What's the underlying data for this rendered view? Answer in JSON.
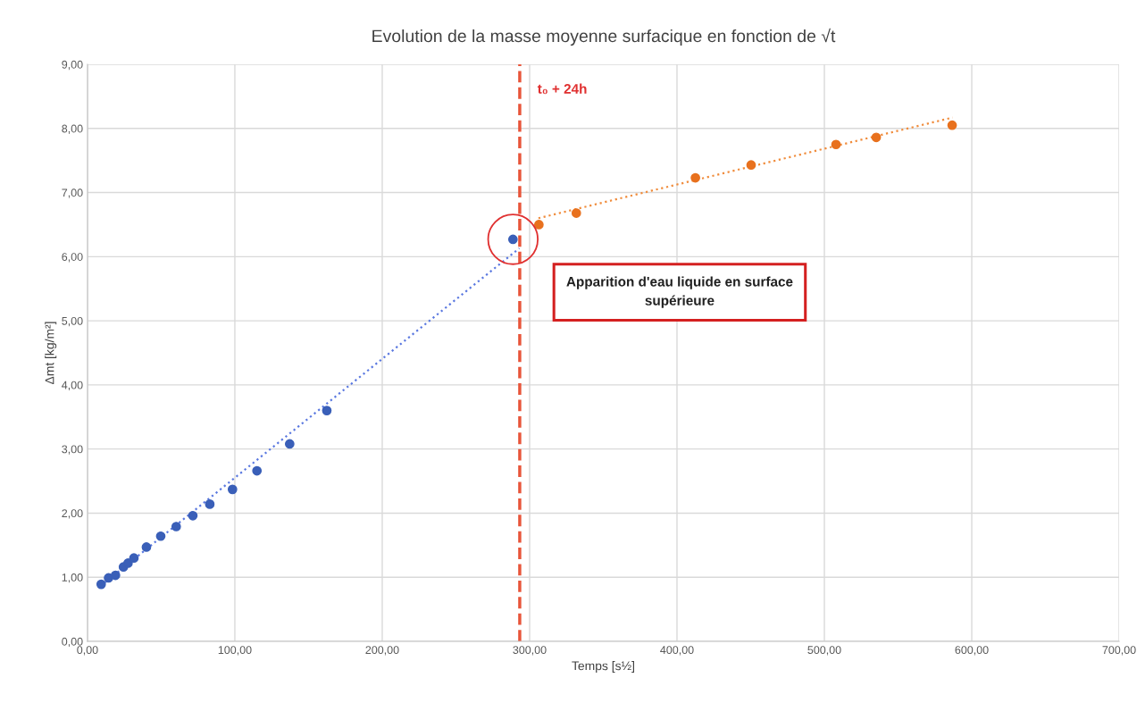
{
  "chart_data": {
    "type": "scatter",
    "title": "Evolution de la masse moyenne surfacique en fonction de √t",
    "xlabel": "Temps [s½]",
    "ylabel": "Δmt [kg/m²]",
    "marker": "circle",
    "grid": true,
    "legend": false,
    "xlim": [
      0,
      700
    ],
    "ylim": [
      0,
      9
    ],
    "xticks": [
      {
        "value": 0,
        "label": "0,00"
      },
      {
        "value": 100,
        "label": "100,00"
      },
      {
        "value": 200,
        "label": "200,00"
      },
      {
        "value": 300,
        "label": "300,00"
      },
      {
        "value": 400,
        "label": "400,00"
      },
      {
        "value": 500,
        "label": "500,00"
      },
      {
        "value": 600,
        "label": "600,00"
      },
      {
        "value": 700,
        "label": "700,00"
      }
    ],
    "yticks": [
      {
        "value": 0,
        "label": "0,00"
      },
      {
        "value": 1,
        "label": "1,00"
      },
      {
        "value": 2,
        "label": "2,00"
      },
      {
        "value": 3,
        "label": "3,00"
      },
      {
        "value": 4,
        "label": "4,00"
      },
      {
        "value": 5,
        "label": "5,00"
      },
      {
        "value": 6,
        "label": "6,00"
      },
      {
        "value": 7,
        "label": "7,00"
      },
      {
        "value": 8,
        "label": "8,00"
      },
      {
        "value": 9,
        "label": "9,00"
      }
    ],
    "series": [
      {
        "color": "#3a5fb8",
        "x": [
          9.3,
          14.3,
          19.0,
          24.4,
          27.5,
          31.5,
          40.0,
          49.7,
          60.2,
          71.5,
          83.0,
          98.4,
          115.0,
          137.2,
          162.4,
          288.7
        ],
        "values": [
          0.89,
          0.99,
          1.03,
          1.16,
          1.22,
          1.3,
          1.47,
          1.64,
          1.79,
          1.96,
          2.14,
          2.37,
          2.66,
          3.08,
          3.6,
          6.27
        ]
      },
      {
        "color": "#e8711e",
        "x": [
          306.3,
          331.7,
          412.5,
          450.3,
          507.9,
          535.2,
          586.7
        ],
        "values": [
          6.5,
          6.68,
          7.23,
          7.43,
          7.75,
          7.86,
          8.05
        ]
      },
      {
        "type": "line",
        "marker": "none",
        "line_style": "dotted",
        "color": "#5a78e0",
        "x": [
          9.3,
          293
        ],
        "values": [
          0.87,
          6.13
        ]
      },
      {
        "type": "line",
        "marker": "none",
        "line_style": "dotted",
        "color": "#f08c3c",
        "x": [
          306,
          587
        ],
        "values": [
          6.6,
          8.17
        ]
      }
    ],
    "ref_lines": [
      {
        "axis": "x",
        "value": 293.3,
        "label": "t₀ + 24h",
        "color": "#e8553a",
        "line_style": "dashed"
      }
    ],
    "annotations": [
      "Apparition d'eau liquide en surface\nsupérieure"
    ]
  }
}
